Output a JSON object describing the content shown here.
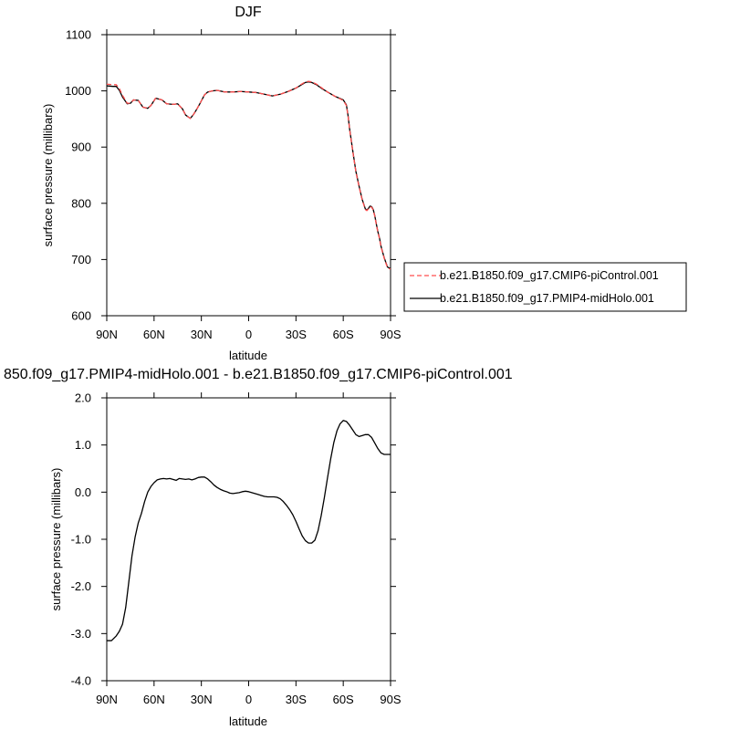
{
  "chart_data": [
    {
      "type": "line",
      "title": "DJF",
      "xlabel": "latitude",
      "ylabel": "surface pressure (millibars)",
      "xlim": [
        -90,
        90
      ],
      "ylim": [
        600,
        1100
      ],
      "x_direction": "north-to-south",
      "x_ticks": [
        -90,
        -60,
        -30,
        0,
        30,
        60,
        90
      ],
      "x_tick_labels": [
        "90N",
        "60N",
        "30N",
        "0",
        "30S",
        "60S",
        "90S"
      ],
      "y_ticks": [
        600,
        700,
        800,
        900,
        1000,
        1100
      ],
      "y_tick_labels": [
        "600",
        "700",
        "800",
        "900",
        "1000",
        "1100"
      ],
      "grid": false,
      "legend_position": "right, outside plot",
      "series": [
        {
          "name": "b.e21.B1850.f09_g17.CMIP6-piControl.001",
          "color": "#ff4d4d",
          "dash": "dashed",
          "x": [
            -90,
            -86,
            -84,
            -82,
            -80,
            -77,
            -75,
            -73,
            -70,
            -67,
            -64,
            -62,
            -59,
            -55,
            -52,
            -48,
            -45,
            -42,
            -40,
            -37,
            -35,
            -33,
            -31,
            -28,
            -26,
            -23,
            -20,
            -15,
            -10,
            -5,
            0,
            5,
            10,
            15,
            20,
            25,
            30,
            33,
            36,
            38,
            40,
            43,
            46,
            50,
            55,
            60,
            62,
            63,
            64,
            66,
            68,
            70,
            72,
            74,
            75,
            76,
            77,
            78,
            79,
            80,
            81,
            82,
            83,
            84,
            85,
            86,
            87,
            88,
            89,
            90
          ],
          "values": [
            1012,
            1011,
            1011,
            1004,
            992,
            978,
            978,
            984,
            983,
            971,
            969,
            974,
            987,
            984,
            977,
            976,
            977,
            968,
            957,
            951,
            958,
            967,
            977,
            993,
            998,
            1000,
            1001,
            998,
            998,
            999,
            998,
            997,
            994,
            991,
            994,
            999,
            1005,
            1011,
            1016,
            1017,
            1016,
            1012,
            1006,
            998,
            990,
            983,
            974,
            956,
            932,
            893,
            856,
            830,
            806,
            789,
            787,
            790,
            794,
            793,
            788,
            777,
            762,
            748,
            737,
            722,
            712,
            702,
            694,
            686,
            684,
            683
          ]
        },
        {
          "name": "b.e21.B1850.f09_g17.PMIP4-midHolo.001",
          "color": "#000000",
          "dash": "solid",
          "x": [
            -90,
            -86,
            -84,
            -82,
            -80,
            -77,
            -75,
            -73,
            -70,
            -67,
            -64,
            -62,
            -59,
            -55,
            -52,
            -48,
            -45,
            -42,
            -40,
            -37,
            -35,
            -33,
            -31,
            -28,
            -26,
            -23,
            -20,
            -15,
            -10,
            -5,
            0,
            5,
            10,
            15,
            20,
            25,
            30,
            33,
            36,
            38,
            40,
            43,
            46,
            50,
            55,
            60,
            62,
            63,
            64,
            66,
            68,
            70,
            72,
            74,
            75,
            76,
            77,
            78,
            79,
            80,
            81,
            82,
            83,
            84,
            85,
            86,
            87,
            88,
            89,
            90
          ],
          "values": [
            1009,
            1008,
            1008,
            1001,
            989,
            977,
            978,
            984,
            983,
            971,
            969,
            974,
            987,
            984,
            977,
            976,
            977,
            968,
            957,
            951,
            958,
            967,
            977,
            993,
            998,
            1000,
            1001,
            998,
            998,
            999,
            998,
            997,
            994,
            991,
            994,
            999,
            1005,
            1010,
            1015,
            1016,
            1015,
            1011,
            1005,
            998,
            990,
            984,
            975,
            957,
            933,
            894,
            857,
            831,
            807,
            790,
            788,
            791,
            795,
            794,
            789,
            778,
            763,
            749,
            738,
            723,
            713,
            703,
            695,
            687,
            685,
            684
          ]
        }
      ]
    },
    {
      "type": "line",
      "title": "850.f09_g17.PMIP4-midHolo.001 - b.e21.B1850.f09_g17.CMIP6-piControl.001",
      "xlabel": "latitude",
      "ylabel": "surface pressure (millibars)",
      "xlim": [
        -90,
        90
      ],
      "ylim": [
        -4.0,
        2.0
      ],
      "x_direction": "north-to-south",
      "x_ticks": [
        -90,
        -60,
        -30,
        0,
        30,
        60,
        90
      ],
      "x_tick_labels": [
        "90N",
        "60N",
        "30N",
        "0",
        "30S",
        "60S",
        "90S"
      ],
      "y_ticks": [
        -4.0,
        -3.0,
        -2.0,
        -1.0,
        0.0,
        1.0,
        2.0
      ],
      "y_tick_labels": [
        "-4.0",
        "-3.0",
        "-2.0",
        "-1.0",
        "0.0",
        "1.0",
        "2.0"
      ],
      "grid": false,
      "series": [
        {
          "color": "#000000",
          "dash": "solid",
          "x": [
            -90,
            -87,
            -84,
            -82,
            -80,
            -78,
            -76,
            -74,
            -72,
            -70,
            -68,
            -66,
            -64,
            -62,
            -60,
            -58,
            -56,
            -54,
            -52,
            -50,
            -48,
            -46,
            -44,
            -42,
            -40,
            -38,
            -36,
            -34,
            -32,
            -30,
            -28,
            -26,
            -24,
            -22,
            -20,
            -18,
            -16,
            -14,
            -12,
            -10,
            -8,
            -6,
            -4,
            -2,
            0,
            2,
            4,
            6,
            8,
            10,
            12,
            14,
            16,
            18,
            20,
            22,
            24,
            26,
            28,
            30,
            32,
            34,
            36,
            38,
            40,
            42,
            44,
            46,
            48,
            50,
            52,
            54,
            56,
            58,
            60,
            62,
            64,
            66,
            68,
            70,
            72,
            74,
            76,
            78,
            80,
            82,
            84,
            86,
            88,
            90
          ],
          "values": [
            -3.15,
            -3.15,
            -3.05,
            -2.95,
            -2.8,
            -2.45,
            -1.9,
            -1.35,
            -0.95,
            -0.65,
            -0.45,
            -0.2,
            0.0,
            0.12,
            0.2,
            0.26,
            0.28,
            0.29,
            0.28,
            0.29,
            0.27,
            0.25,
            0.29,
            0.28,
            0.27,
            0.28,
            0.26,
            0.28,
            0.31,
            0.32,
            0.32,
            0.28,
            0.22,
            0.15,
            0.1,
            0.06,
            0.03,
            0.01,
            -0.02,
            -0.03,
            -0.02,
            -0.01,
            0.01,
            0.02,
            0.01,
            -0.01,
            -0.03,
            -0.05,
            -0.07,
            -0.09,
            -0.1,
            -0.1,
            -0.1,
            -0.11,
            -0.14,
            -0.2,
            -0.28,
            -0.37,
            -0.48,
            -0.62,
            -0.78,
            -0.93,
            -1.03,
            -1.08,
            -1.08,
            -1.02,
            -0.82,
            -0.5,
            -0.12,
            0.3,
            0.7,
            1.05,
            1.3,
            1.45,
            1.52,
            1.5,
            1.42,
            1.32,
            1.22,
            1.18,
            1.2,
            1.22,
            1.22,
            1.16,
            1.04,
            0.92,
            0.83,
            0.8,
            0.8,
            0.8
          ]
        }
      ]
    }
  ]
}
